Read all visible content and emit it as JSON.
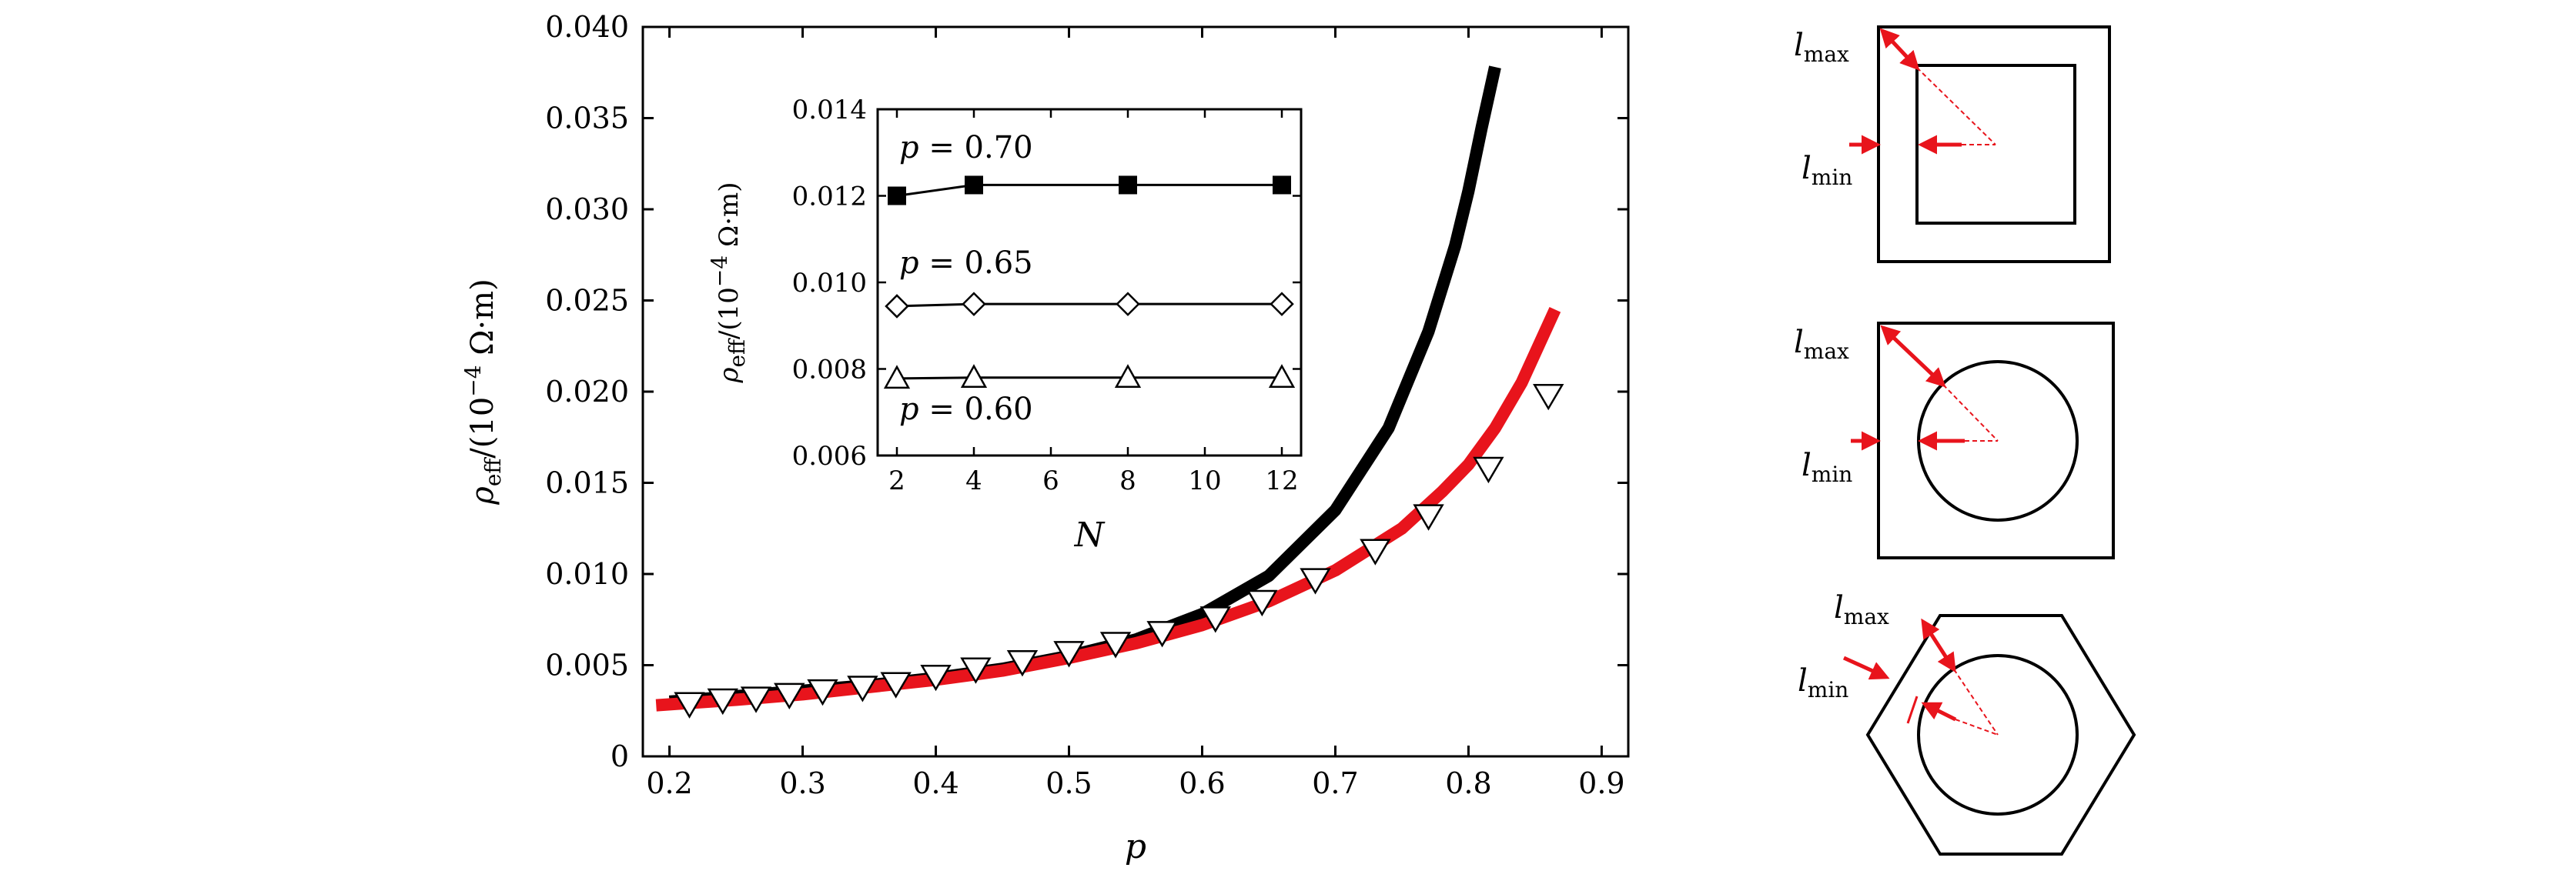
{
  "chart_data": [
    {
      "type": "line",
      "xlabel": "p",
      "ylabel": "ρeff/(10−4 Ω·m)",
      "ylabel_parts": {
        "rho": "ρ",
        "sub": "eff",
        "mid": "/(10",
        "sup": "−4",
        "unit": " Ω·m)"
      },
      "xlim": [
        0.18,
        0.92
      ],
      "ylim": [
        0,
        0.04
      ],
      "xticks": [
        "0.2",
        "0.3",
        "0.4",
        "0.5",
        "0.6",
        "0.7",
        "0.8",
        "0.9"
      ],
      "yticks": [
        "0",
        "0.005",
        "0.010",
        "0.015",
        "0.020",
        "0.025",
        "0.030",
        "0.035",
        "0.040"
      ],
      "grid": false,
      "series": [
        {
          "style": "thick-line",
          "color": "#000000",
          "x": [
            0.2,
            0.25,
            0.3,
            0.35,
            0.4,
            0.45,
            0.5,
            0.55,
            0.6,
            0.65,
            0.7,
            0.74,
            0.77,
            0.79,
            0.8,
            0.81,
            0.82
          ],
          "y": [
            0.003,
            0.0033,
            0.0036,
            0.0039,
            0.0043,
            0.0048,
            0.0055,
            0.0064,
            0.0078,
            0.0099,
            0.0135,
            0.018,
            0.0233,
            0.028,
            0.031,
            0.0345,
            0.0378
          ]
        },
        {
          "style": "thick-line",
          "color": "#e8141c",
          "x": [
            0.19,
            0.25,
            0.3,
            0.35,
            0.4,
            0.45,
            0.5,
            0.55,
            0.6,
            0.65,
            0.7,
            0.75,
            0.78,
            0.8,
            0.82,
            0.84,
            0.865
          ],
          "y": [
            0.0028,
            0.0031,
            0.0034,
            0.0038,
            0.0042,
            0.0047,
            0.0054,
            0.0062,
            0.0072,
            0.0085,
            0.0102,
            0.0125,
            0.0145,
            0.016,
            0.018,
            0.0205,
            0.0245
          ]
        },
        {
          "style": "open-triangle-down-markers",
          "color": "#000000",
          "x": [
            0.215,
            0.24,
            0.265,
            0.29,
            0.315,
            0.345,
            0.37,
            0.4,
            0.43,
            0.465,
            0.5,
            0.535,
            0.57,
            0.61,
            0.645,
            0.685,
            0.73,
            0.77,
            0.815,
            0.86
          ],
          "y": [
            0.0029,
            0.0031,
            0.0032,
            0.0034,
            0.0036,
            0.0038,
            0.004,
            0.0044,
            0.0048,
            0.0052,
            0.0057,
            0.0062,
            0.0068,
            0.0076,
            0.0085,
            0.0097,
            0.0113,
            0.0132,
            0.0158,
            0.0198
          ]
        }
      ]
    },
    {
      "type": "line",
      "role": "inset",
      "xlabel": "N",
      "ylabel": "ρeff/(10−4 Ω·m)",
      "xlim": [
        1.5,
        12.5
      ],
      "ylim": [
        0.006,
        0.014
      ],
      "xticks": [
        "2",
        "4",
        "6",
        "8",
        "10",
        "12"
      ],
      "yticks": [
        "0.006",
        "0.008",
        "0.010",
        "0.012",
        "0.014"
      ],
      "grid": false,
      "series": [
        {
          "marker": "filled-square",
          "x": [
            2,
            4,
            8,
            12
          ],
          "y": [
            0.012,
            0.01225,
            0.01225,
            0.01225
          ]
        },
        {
          "marker": "open-diamond",
          "x": [
            2,
            4,
            8,
            12
          ],
          "y": [
            0.00945,
            0.0095,
            0.0095,
            0.0095
          ]
        },
        {
          "marker": "open-triangle-up",
          "x": [
            2,
            4,
            8,
            12
          ],
          "y": [
            0.00778,
            0.0078,
            0.0078,
            0.0078
          ]
        }
      ],
      "annotations": [
        {
          "var": "p",
          "text": " = 0.70"
        },
        {
          "var": "p",
          "text": " = 0.65"
        },
        {
          "var": "p",
          "text": " = 0.60"
        }
      ]
    }
  ],
  "diagrams": {
    "lmax": {
      "l": "l",
      "sub": "max"
    },
    "lmin": {
      "l": "l",
      "sub": "min"
    },
    "panels": [
      {
        "shape": "square-in-square"
      },
      {
        "shape": "circle-in-square"
      },
      {
        "shape": "circle-in-hexagon"
      }
    ]
  }
}
